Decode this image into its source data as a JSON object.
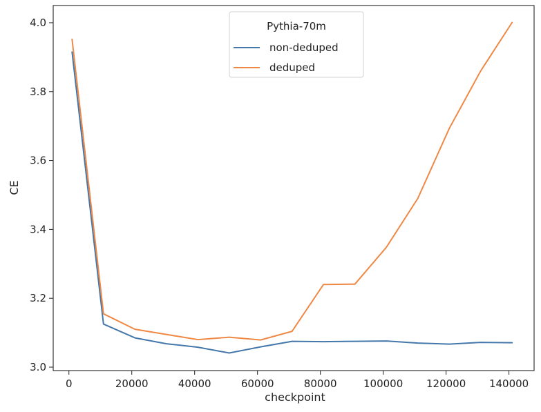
{
  "chart_data": {
    "type": "line",
    "title": "",
    "xlabel": "checkpoint",
    "ylabel": "CE",
    "xlim": [
      -5000,
      148000
    ],
    "ylim": [
      2.99,
      4.05
    ],
    "xticks": [
      0,
      20000,
      40000,
      60000,
      80000,
      100000,
      120000,
      140000
    ],
    "xtick_labels": [
      "0",
      "20000",
      "40000",
      "60000",
      "80000",
      "100000",
      "120000",
      "140000"
    ],
    "yticks": [
      3.0,
      3.2,
      3.4,
      3.6,
      3.8,
      4.0
    ],
    "ytick_labels": [
      "3.0",
      "3.2",
      "3.4",
      "3.6",
      "3.8",
      "4.0"
    ],
    "grid": false,
    "legend": {
      "title": "Pythia-70m",
      "placement": "upper-center"
    },
    "series": [
      {
        "name": "non-deduped",
        "color": "#4477aa",
        "x": [
          1000,
          11000,
          21000,
          31000,
          41000,
          51000,
          61000,
          71000,
          81000,
          91000,
          101000,
          111000,
          121000,
          131000,
          141000
        ],
        "y": [
          3.915,
          3.125,
          3.085,
          3.068,
          3.058,
          3.041,
          3.059,
          3.075,
          3.074,
          3.075,
          3.076,
          3.07,
          3.067,
          3.072,
          3.071
        ]
      },
      {
        "name": "deduped",
        "color": "#ee8844",
        "x": [
          1000,
          11000,
          21000,
          31000,
          41000,
          51000,
          61000,
          71000,
          81000,
          91000,
          101000,
          111000,
          121000,
          131000,
          141000
        ],
        "y": [
          3.952,
          3.155,
          3.11,
          3.095,
          3.08,
          3.087,
          3.079,
          3.104,
          3.24,
          3.241,
          3.348,
          3.49,
          3.693,
          3.86,
          4.001
        ]
      }
    ]
  }
}
